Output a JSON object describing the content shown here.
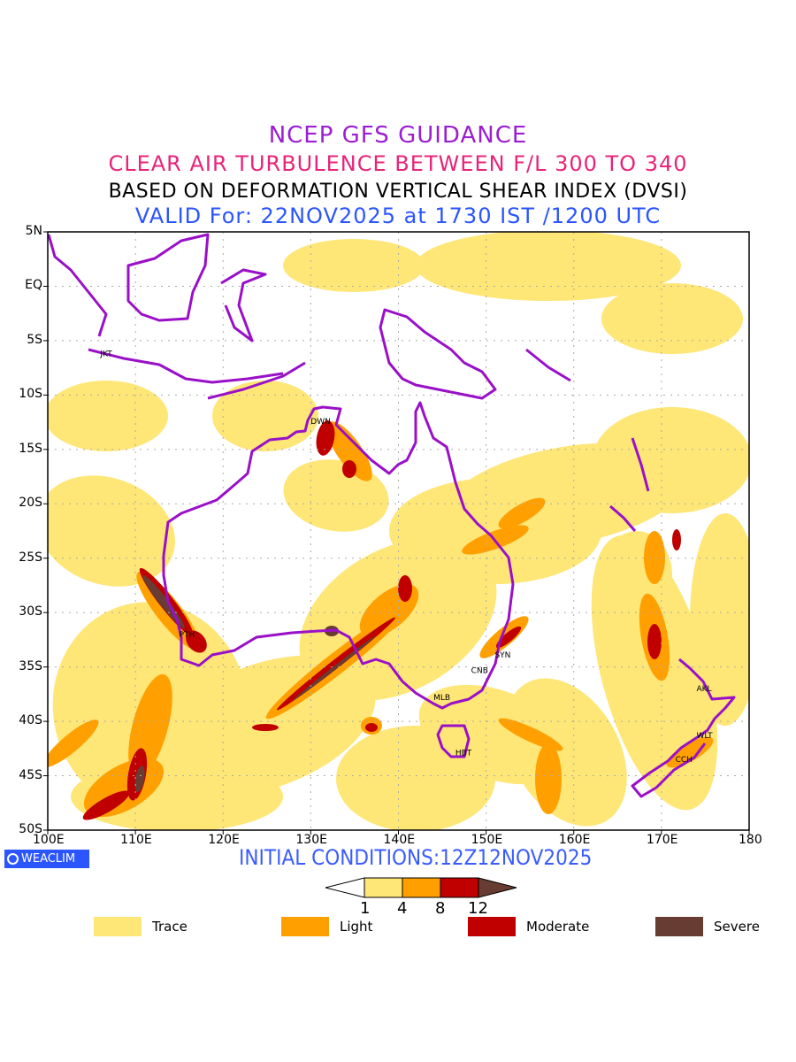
{
  "titles": {
    "line1": "NCEP GFS GUIDANCE",
    "line2": "CLEAR AIR TURBULENCE BETWEEN F/L 300 TO 340",
    "line3": "BASED ON DEFORMATION VERTICAL SHEAR INDEX (DVSI)",
    "line4": "VALID For: 22NOV2025 at 1730 IST /1200 UTC"
  },
  "axes": {
    "lat_labels": [
      "5N",
      "EQ",
      "5S",
      "10S",
      "15S",
      "20S",
      "25S",
      "30S",
      "35S",
      "40S",
      "45S",
      "50S"
    ],
    "lon_labels": [
      "100E",
      "110E",
      "120E",
      "130E",
      "140E",
      "150E",
      "160E",
      "170E",
      "180"
    ]
  },
  "cities": [
    {
      "code": "JKT",
      "lon": 107,
      "lat": -6.2
    },
    {
      "code": "DWN",
      "lon": 131,
      "lat": -12.4
    },
    {
      "code": "PTH",
      "lon": 116,
      "lat": -32
    },
    {
      "code": "SYN",
      "lon": 152,
      "lat": -33.9
    },
    {
      "code": "CNB",
      "lon": 149.3,
      "lat": -35.3
    },
    {
      "code": "MLB",
      "lon": 145,
      "lat": -37.8
    },
    {
      "code": "HBT",
      "lon": 147.5,
      "lat": -42.9
    },
    {
      "code": "AKL",
      "lon": 175,
      "lat": -37
    },
    {
      "code": "WLT",
      "lon": 175,
      "lat": -41.3
    },
    {
      "code": "CCH",
      "lon": 172.6,
      "lat": -43.5
    }
  ],
  "brand": "WEACLIM",
  "initial_conditions": "INITIAL CONDITIONS:12Z12NOV2025",
  "colorbar": {
    "thresholds": [
      "1",
      "4",
      "8",
      "12"
    ]
  },
  "legend": [
    {
      "label": "Trace",
      "color": "#fee677"
    },
    {
      "label": "Light",
      "color": "#ffa000"
    },
    {
      "label": "Moderate",
      "color": "#c00000"
    },
    {
      "label": "Severe",
      "color": "#673c32"
    }
  ],
  "coast_color": "#9a10c8"
}
